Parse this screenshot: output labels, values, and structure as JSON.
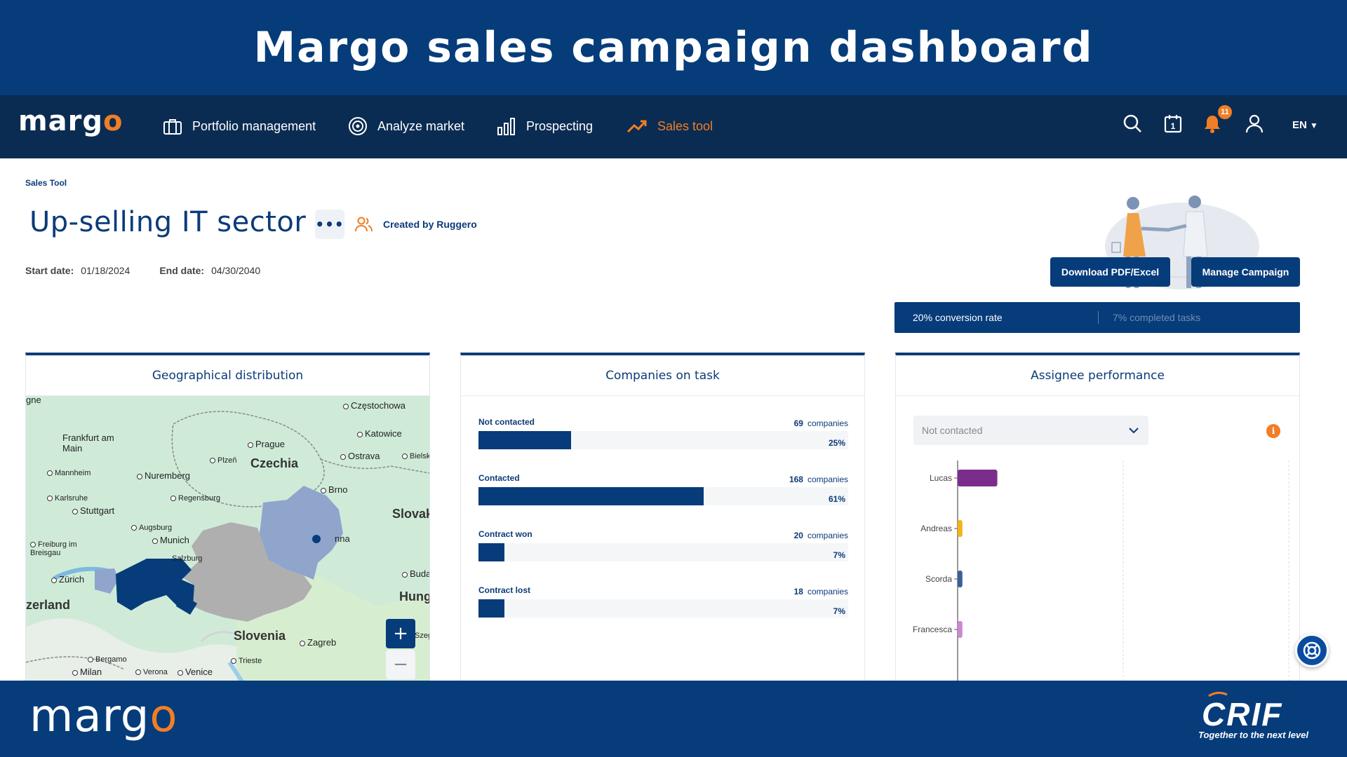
{
  "banner": {
    "title": "Margo sales campaign dashboard"
  },
  "nav": {
    "logo": "margo",
    "items": [
      {
        "label": "Portfolio management"
      },
      {
        "label": "Analyze market"
      },
      {
        "label": "Prospecting"
      },
      {
        "label": "Sales tool"
      }
    ],
    "calendar_day": "1",
    "notifications_count": "11",
    "language": "EN"
  },
  "page": {
    "breadcrumb": "Sales Tool",
    "title": "Up-selling IT sector",
    "created_by": "Created by Ruggero",
    "start_label": "Start date:",
    "start_value": "01/18/2024",
    "end_label": "End date:",
    "end_value": "04/30/2040",
    "download_button": "Download PDF/Excel",
    "manage_button": "Manage Campaign",
    "conversion_rate": "20% conversion rate",
    "completed_tasks": "7% completed tasks"
  },
  "cards": {
    "geo_title": "Geographical distribution",
    "tasks_title": "Companies on task",
    "assignee_title": "Assignee performance"
  },
  "map_labels": {
    "czestochowa": "Częstochowa",
    "katowice": "Katowice",
    "frankfurt": "Frankfurt am Main",
    "prague": "Prague",
    "czechia": "Czechia",
    "ostrava": "Ostrava",
    "bielsko": "Bielsk",
    "mannheim": "Mannheim",
    "nuremberg": "Nuremberg",
    "plzen": "Plzeň",
    "brno": "Brno",
    "karlsruhe": "Karlsruhe",
    "regensburg": "Regensburg",
    "stuttgart": "Stuttgart",
    "slovakia": "Slovak",
    "augsburg": "Augsburg",
    "munich": "Munich",
    "vienna": "nna",
    "freiburg": "Freiburg im Breisgau",
    "salzburg": "Salzburg",
    "budapest": "Buda",
    "zurich": "Zürich",
    "hungary": "Hung",
    "switzerland": "zerland",
    "slovenia": "Slovenia",
    "zagreb": "Zagreb",
    "bergamo": "Bergamo",
    "trieste": "Trieste",
    "milan": "Milan",
    "verona": "Verona",
    "venice": "Venice",
    "gne": "gne",
    "szeg": "Szeg"
  },
  "tasks": {
    "unit": "companies",
    "rows": [
      {
        "label": "Not contacted",
        "count": "69",
        "percent": "25%",
        "value": 25
      },
      {
        "label": "Contacted",
        "count": "168",
        "percent": "61%",
        "value": 61
      },
      {
        "label": "Contract won",
        "count": "20",
        "percent": "7%",
        "value": 7
      },
      {
        "label": "Contract lost",
        "count": "18",
        "percent": "7%",
        "value": 7
      }
    ]
  },
  "assignee": {
    "select_value": "Not contacted",
    "info_icon": "i"
  },
  "chart_data": {
    "type": "bar",
    "orientation": "horizontal",
    "categories": [
      "Lucas",
      "Andreas",
      "Scorda",
      "Francesca"
    ],
    "values": [
      25,
      3,
      3,
      3
    ],
    "colors": [
      "#7B2D8B",
      "#F2B516",
      "#3A5F9A",
      "#C98ACF"
    ],
    "xlim": [
      0,
      190
    ]
  },
  "footer": {
    "logo": "margo",
    "crif_tagline": "Together to the next level"
  },
  "colors": {
    "brand_navy": "#063C7A",
    "nav_dark": "#0B2C52",
    "accent_orange": "#F07E26"
  }
}
